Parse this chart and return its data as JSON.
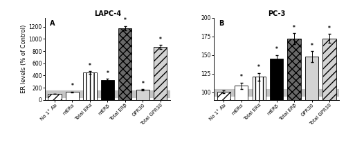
{
  "panel_A": {
    "title": "LAPC-4",
    "label": "A",
    "categories": [
      "No 1° Ab",
      "mERα",
      "Total ERα",
      "mERβ",
      "Total ERβ",
      "GPR30",
      "Total GPR30"
    ],
    "values": [
      100,
      130,
      450,
      330,
      1175,
      165,
      870
    ],
    "errors": [
      5,
      8,
      22,
      15,
      35,
      12,
      30
    ],
    "hatch": [
      "///",
      "",
      "|||",
      "",
      "xxx",
      "",
      "///"
    ],
    "facecolor": [
      "white",
      "white",
      "white",
      "black",
      "dimgray",
      "lightgray",
      "lightgray"
    ],
    "significance": [
      false,
      true,
      true,
      true,
      true,
      true,
      true
    ],
    "ylim": [
      0,
      1350
    ],
    "yticks": [
      0,
      200,
      400,
      600,
      800,
      1000,
      1200
    ],
    "ylabel": "ER levels (% of Control)",
    "hline": 100,
    "hline_color": "gray",
    "hline_lw": 8
  },
  "panel_B": {
    "title": "PC-3",
    "label": "B",
    "categories": [
      "No 1° Ab",
      "mERα",
      "Total ERα",
      "mERβ",
      "Total ERβ",
      "GPR30",
      "Total GPR30"
    ],
    "values": [
      101,
      109,
      121,
      145,
      172,
      148,
      172
    ],
    "errors": [
      2,
      4,
      5,
      5,
      7,
      7,
      6
    ],
    "hatch": [
      "///",
      "",
      "|||",
      "",
      "xxx",
      "",
      "///"
    ],
    "facecolor": [
      "white",
      "white",
      "white",
      "black",
      "dimgray",
      "lightgray",
      "lightgray"
    ],
    "significance": [
      false,
      true,
      true,
      true,
      true,
      true,
      true
    ],
    "ylim": [
      90,
      200
    ],
    "yticks": [
      100,
      125,
      150,
      175,
      200
    ],
    "hline": 100,
    "hline_color": "gray",
    "hline_lw": 8
  },
  "bar_width": 0.75,
  "figsize": [
    5.0,
    2.13
  ],
  "dpi": 100
}
